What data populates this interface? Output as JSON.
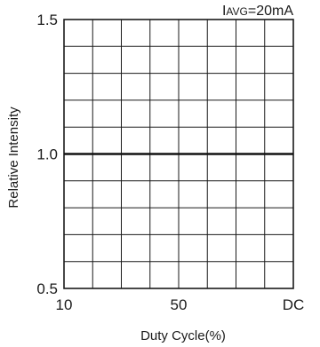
{
  "chart_data": {
    "type": "line",
    "xlabel": "Duty Cycle(%)",
    "ylabel": "Relative Intensity",
    "annotation": {
      "main": "I",
      "sub": "AVG",
      "rest": "=20mA"
    },
    "x_categories": [
      "10",
      "50",
      "DC"
    ],
    "x_tick_labels": [
      "10",
      "50",
      "DC"
    ],
    "y_ticks": [
      0.5,
      1.0,
      1.5
    ],
    "y_tick_labels": [
      "0.5",
      "1.0",
      "1.5"
    ],
    "ylim": [
      0.5,
      1.5
    ],
    "grid": true,
    "series": [
      {
        "x": [
          "10",
          "50",
          "DC"
        ],
        "values": [
          1.0,
          1.0,
          1.0
        ]
      }
    ]
  }
}
